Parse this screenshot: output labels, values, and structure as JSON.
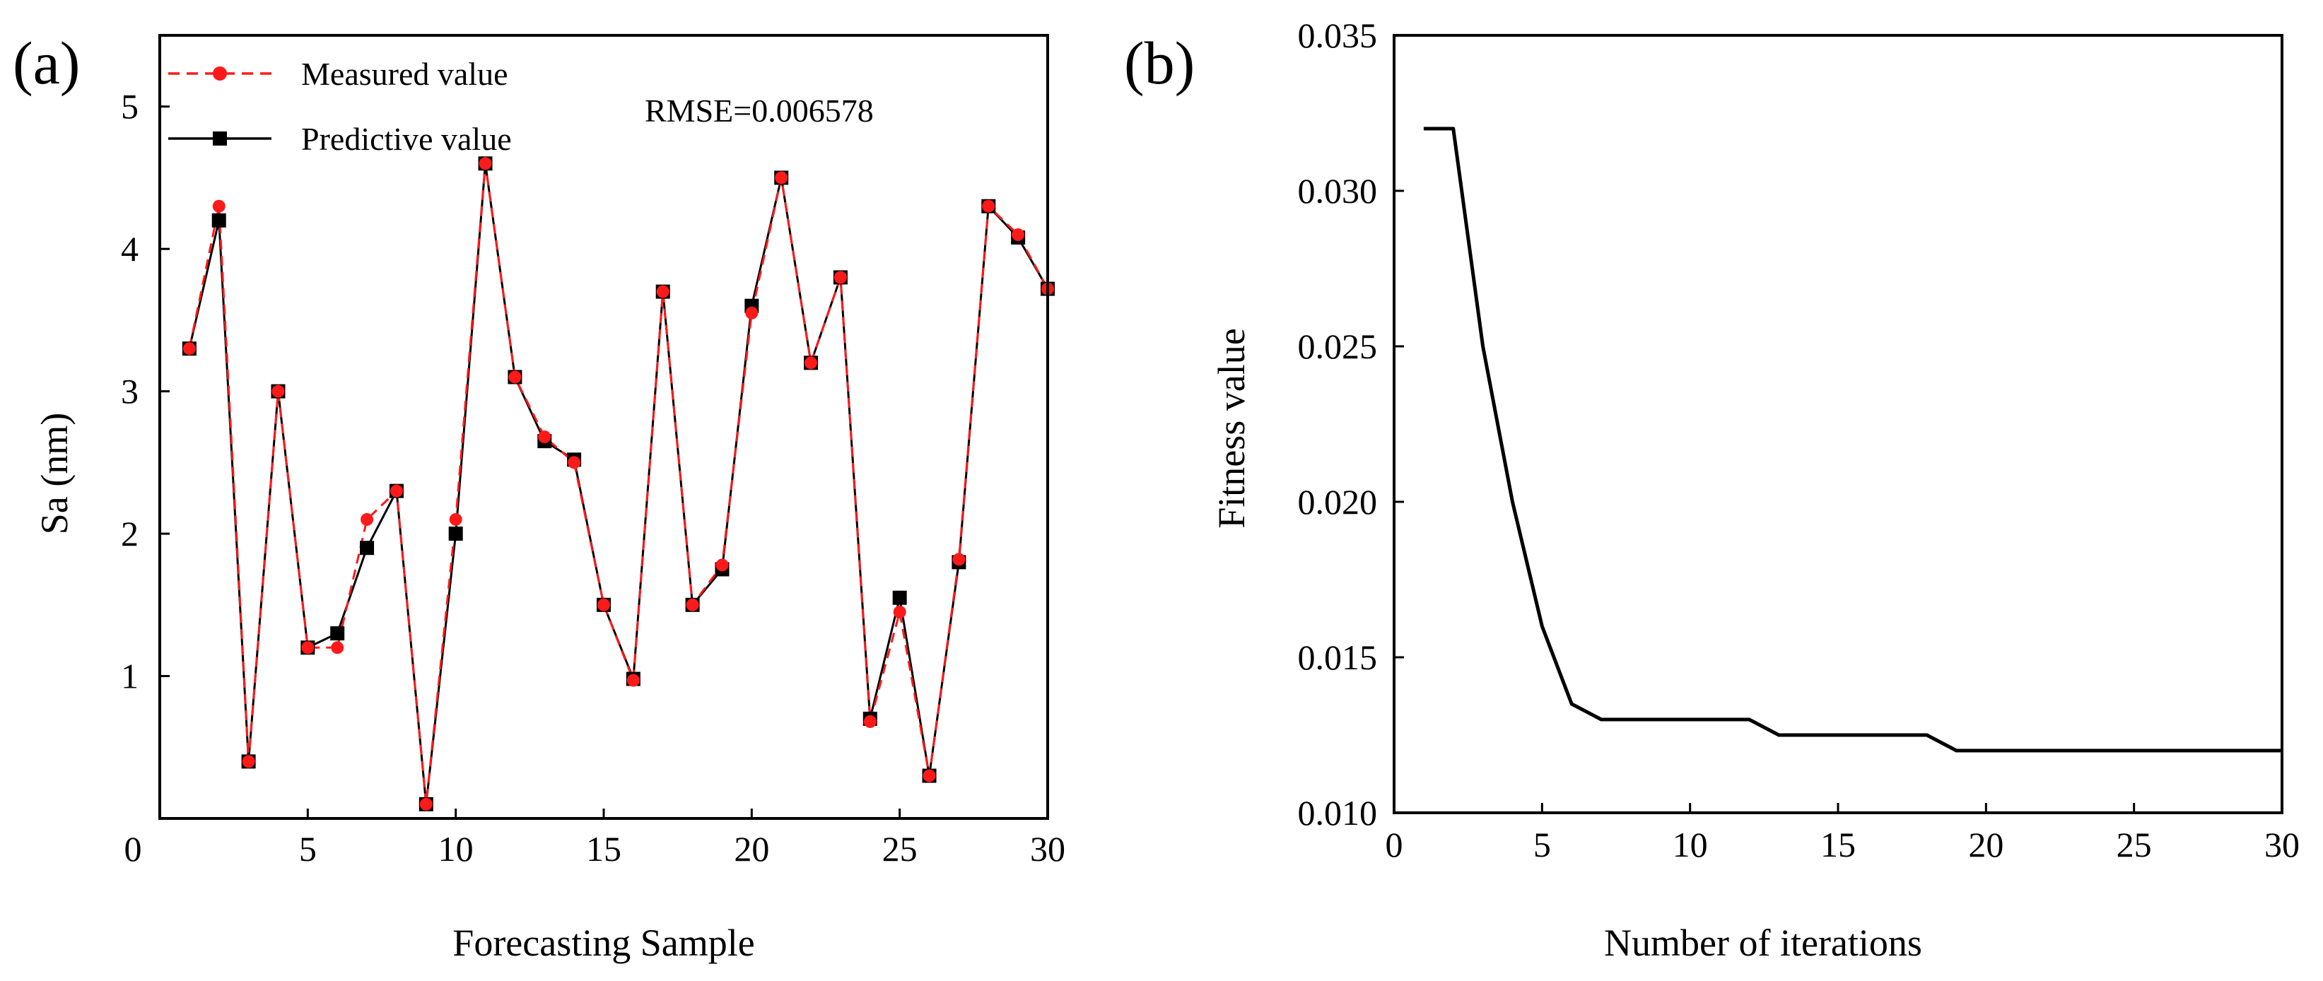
{
  "chart_data": [
    {
      "panel_label": "(a)",
      "type": "line",
      "xlabel": "Forecasting Sample",
      "ylabel": "Sa (nm)",
      "xlim": [
        0,
        30
      ],
      "ylim": [
        0,
        5.5
      ],
      "xticks": [
        5,
        10,
        15,
        20,
        25,
        30
      ],
      "xtick_labels": [
        "5",
        "10",
        "15",
        "20",
        "25",
        "30"
      ],
      "yticks": [
        1,
        2,
        3,
        4,
        5
      ],
      "ytick_labels": [
        "1",
        "2",
        "3",
        "4",
        "5"
      ],
      "origin_label": "0",
      "annotation": "RMSE=0.006578",
      "x": [
        1,
        2,
        3,
        4,
        5,
        6,
        7,
        8,
        9,
        10,
        11,
        12,
        13,
        14,
        15,
        16,
        17,
        18,
        19,
        20,
        21,
        22,
        23,
        24,
        25,
        26,
        27,
        28,
        29,
        30
      ],
      "series": [
        {
          "name": "Measured value",
          "color": "#ff1a1a",
          "marker": "circle",
          "dash": "dashed",
          "values": [
            3.3,
            4.3,
            0.4,
            3.0,
            1.2,
            1.2,
            2.1,
            2.3,
            0.1,
            2.1,
            4.6,
            3.1,
            2.68,
            2.5,
            1.5,
            0.97,
            3.7,
            1.5,
            1.78,
            3.55,
            4.5,
            3.2,
            3.8,
            0.68,
            1.45,
            0.3,
            1.82,
            4.3,
            4.1,
            3.72
          ]
        },
        {
          "name": "Predictive value",
          "color": "#000000",
          "marker": "square",
          "dash": "solid",
          "values": [
            3.3,
            4.2,
            0.4,
            3.0,
            1.2,
            1.3,
            1.9,
            2.3,
            0.1,
            2.0,
            4.6,
            3.1,
            2.65,
            2.52,
            1.5,
            0.98,
            3.7,
            1.5,
            1.75,
            3.6,
            4.5,
            3.2,
            3.8,
            0.7,
            1.55,
            0.3,
            1.8,
            4.3,
            4.08,
            3.72
          ]
        }
      ]
    },
    {
      "panel_label": "(b)",
      "type": "line",
      "xlabel": "Number of iterations",
      "ylabel": "Fitness value",
      "xlim": [
        0,
        30
      ],
      "ylim": [
        0.01,
        0.035
      ],
      "xticks": [
        0,
        5,
        10,
        15,
        20,
        25,
        30
      ],
      "xtick_labels": [
        "0",
        "5",
        "10",
        "15",
        "20",
        "25",
        "30"
      ],
      "yticks": [
        0.01,
        0.015,
        0.02,
        0.025,
        0.03,
        0.035
      ],
      "ytick_labels": [
        "0.010",
        "0.015",
        "0.020",
        "0.025",
        "0.030",
        "0.035"
      ],
      "series": [
        {
          "name": "Fitness value",
          "color": "#000000",
          "x": [
            1,
            2,
            3,
            4,
            5,
            6,
            7,
            8,
            9,
            10,
            11,
            12,
            13,
            14,
            15,
            16,
            17,
            18,
            19,
            20,
            21,
            22,
            23,
            24,
            25,
            26,
            27,
            28,
            29,
            30
          ],
          "values": [
            0.032,
            0.032,
            0.025,
            0.02,
            0.016,
            0.0135,
            0.013,
            0.013,
            0.013,
            0.013,
            0.013,
            0.013,
            0.0125,
            0.0125,
            0.0125,
            0.0125,
            0.0125,
            0.0125,
            0.012,
            0.012,
            0.012,
            0.012,
            0.012,
            0.012,
            0.012,
            0.012,
            0.012,
            0.012,
            0.012,
            0.012
          ]
        }
      ]
    }
  ]
}
